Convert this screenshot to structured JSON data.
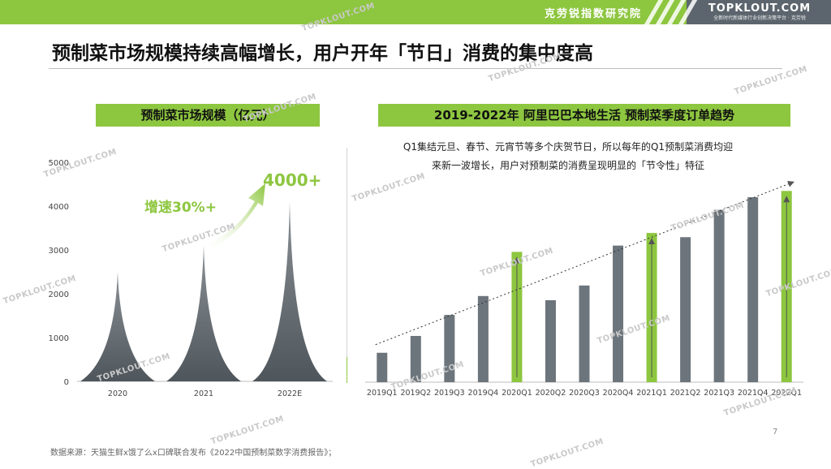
{
  "header": {
    "org_name": "克劳锐指数研究院",
    "brand": "TOPKLOUT.COM",
    "brand_tagline": "全新时代新媒体行业创新决策平台 · 克劳锐"
  },
  "page_title": "预制菜市场规模持续高幅增长，用户开年「节日」消费的集中度高",
  "watermark_text": "TOPKLOUT.COM",
  "colors": {
    "accent_green": "#8dc63f",
    "bar_gray": "#6d757c",
    "header_dark": "#5c656d"
  },
  "left_panel": {
    "title": "预制菜市场规模（亿元）",
    "growth_label": "增速30%+",
    "highlight_value": "4000+"
  },
  "right_panel": {
    "title": "2019-2022年 阿里巴巴本地生活 预制菜季度订单趋势",
    "note_line1": "Q1集结元旦、春节、元宵节等多个庆贺节日，所以每年的Q1预制菜消费均迎",
    "note_line2": "来新一波增长，用户对预制菜的消费呈现明显的「节令性」特征"
  },
  "chart_data": [
    {
      "type": "area",
      "title": "预制菜市场规模（亿元）",
      "categories": [
        "2020",
        "2021",
        "2022E"
      ],
      "values": [
        2500,
        3100,
        4100
      ],
      "yticks": [
        0,
        1000,
        2000,
        3000,
        4000,
        5000
      ],
      "ylim": [
        0,
        5000
      ],
      "annotations": [
        "增速30%+",
        "4000+"
      ]
    },
    {
      "type": "bar",
      "title": "2019-2022年 阿里巴巴本地生活 预制菜季度订单趋势",
      "categories": [
        "2019Q1",
        "2019Q2",
        "2019Q3",
        "2019Q4",
        "2020Q1",
        "2020Q2",
        "2020Q3",
        "2020Q4",
        "2021Q1",
        "2021Q2",
        "2021Q3",
        "2021Q4",
        "2022Q1"
      ],
      "values": [
        14,
        22,
        32,
        41,
        62,
        39,
        46,
        65,
        71,
        69,
        82,
        88,
        91
      ],
      "highlighted": [
        "2020Q1",
        "2021Q1",
        "2022Q1"
      ],
      "ylim": [
        0,
        100
      ],
      "axis_shown": false,
      "trendline": true
    }
  ],
  "footer": {
    "source": "数据来源：天猫生鲜x饿了么x口碑联合发布《2022中国预制菜数字消费报告》；",
    "page_number": "7"
  }
}
